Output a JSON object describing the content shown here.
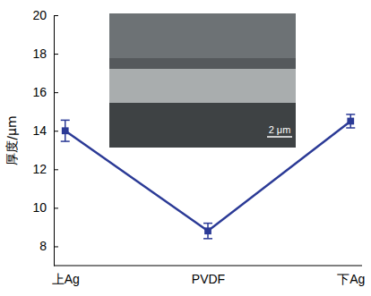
{
  "chart_data": {
    "type": "line",
    "y_label": "厚度/μm",
    "categories": [
      "上Ag",
      "PVDF",
      "下Ag"
    ],
    "values": [
      14.0,
      8.8,
      14.5
    ],
    "errors": [
      0.55,
      0.4,
      0.35
    ],
    "color": "#2b3a96",
    "marker": "square",
    "ylim": [
      7,
      20
    ],
    "yticks": [
      8,
      10,
      12,
      14,
      16,
      18,
      20
    ],
    "annotations": [
      "2 μm"
    ]
  }
}
